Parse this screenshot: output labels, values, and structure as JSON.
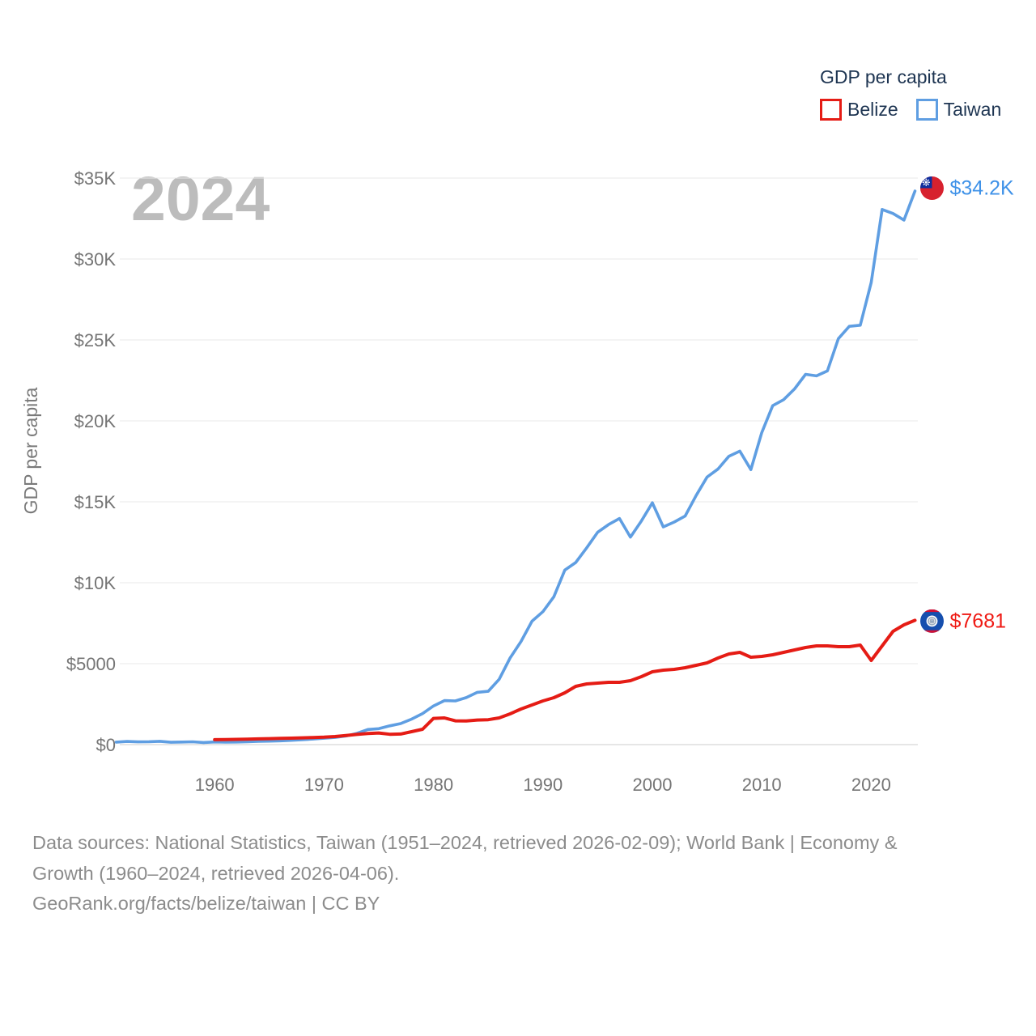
{
  "legend": {
    "title": "GDP per capita",
    "items": [
      {
        "label": "Belize",
        "color": "#e51c15"
      },
      {
        "label": "Taiwan",
        "color": "#5f9ee2"
      }
    ]
  },
  "watermark": "2024",
  "y_axis_title": "GDP per capita",
  "footer": {
    "lines": [
      "Data sources: National Statistics, Taiwan (1951–2024, retrieved 2026-02-09); World Bank | Economy &",
      "Growth (1960–2024, retrieved 2026-04-06).",
      "GeoRank.org/facts/belize/taiwan | CC BY"
    ]
  },
  "chart_data": {
    "type": "line",
    "title": "GDP per capita",
    "xlabel": "",
    "ylabel": "GDP per capita",
    "xlim": [
      1951,
      2024
    ],
    "ylim": [
      0,
      35000
    ],
    "grid": "horizontal",
    "legend_position": "top-right",
    "yticks": [
      {
        "value": 0,
        "label": "$0"
      },
      {
        "value": 5000,
        "label": "$5000"
      },
      {
        "value": 10000,
        "label": "$10K"
      },
      {
        "value": 15000,
        "label": "$15K"
      },
      {
        "value": 20000,
        "label": "$20K"
      },
      {
        "value": 25000,
        "label": "$25K"
      },
      {
        "value": 30000,
        "label": "$30K"
      },
      {
        "value": 35000,
        "label": "$35K"
      }
    ],
    "xticks": [
      1960,
      1970,
      1980,
      1990,
      2000,
      2010,
      2020
    ],
    "series": [
      {
        "name": "Belize",
        "color": "#e51c15",
        "end_label": "$7681",
        "end_label_color": "#ef1a14",
        "start_year": 1960,
        "end_year": 2024,
        "values": [
          304,
          315,
          327,
          340,
          354,
          369,
          385,
          402,
          421,
          441,
          462,
          500,
          560,
          630,
          690,
          720,
          640,
          655,
          800,
          950,
          1620,
          1650,
          1470,
          1460,
          1520,
          1540,
          1650,
          1900,
          2200,
          2450,
          2700,
          2900,
          3200,
          3600,
          3750,
          3800,
          3850,
          3850,
          3950,
          4200,
          4500,
          4600,
          4650,
          4750,
          4900,
          5050,
          5350,
          5600,
          5700,
          5400,
          5450,
          5550,
          5700,
          5850,
          6000,
          6100,
          6100,
          6050,
          6050,
          6150,
          5200,
          6100,
          7000,
          7400,
          7681
        ]
      },
      {
        "name": "Taiwan",
        "color": "#5f9ee2",
        "end_label": "$34.2K",
        "end_label_color": "#3f92e8",
        "start_year": 1951,
        "end_year": 2024,
        "values": [
          154,
          196,
          170,
          180,
          203,
          146,
          160,
          175,
          132,
          163,
          152,
          161,
          178,
          202,
          217,
          236,
          267,
          304,
          345,
          397,
          443,
          530,
          695,
          934,
          985,
          1158,
          1301,
          1577,
          1920,
          2389,
          2720,
          2699,
          2903,
          3229,
          3297,
          4036,
          5350,
          6370,
          7626,
          8216,
          9136,
          10778,
          11251,
          12160,
          13119,
          13597,
          13968,
          12820,
          13819,
          14941,
          13448,
          13750,
          14120,
          15388,
          16532,
          17026,
          17814,
          18131,
          16988,
          19278,
          20939,
          21308,
          21973,
          22874,
          22780,
          23091,
          25080,
          25838,
          25908,
          28549,
          33059,
          32811,
          32404,
          34200
        ]
      }
    ]
  }
}
